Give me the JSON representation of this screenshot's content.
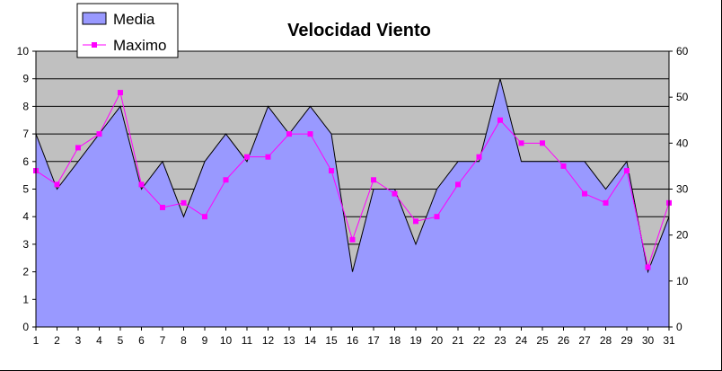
{
  "chart_data": {
    "type": "area",
    "title": "Velocidad Viento",
    "x": [
      1,
      2,
      3,
      4,
      5,
      6,
      7,
      8,
      9,
      10,
      11,
      12,
      13,
      14,
      15,
      16,
      17,
      18,
      19,
      20,
      21,
      22,
      23,
      24,
      25,
      26,
      27,
      28,
      29,
      30,
      31
    ],
    "x_tick_labels": [
      "1",
      "2",
      "3",
      "4",
      "5",
      "6",
      "7",
      "8",
      "9",
      "10",
      "11",
      "12",
      "13",
      "14",
      "15",
      "16",
      "17",
      "18",
      "19",
      "20",
      "21",
      "22",
      "23",
      "24",
      "25",
      "26",
      "27",
      "28",
      "29",
      "30",
      "31"
    ],
    "series": [
      {
        "name": "Media",
        "type": "area",
        "axis": "left",
        "color": "#9999ff",
        "values": [
          7,
          5,
          6,
          7,
          8,
          5,
          6,
          4,
          6,
          7,
          6,
          8,
          7,
          8,
          7,
          2,
          5,
          5,
          3,
          5,
          6,
          6,
          9,
          6,
          6,
          6,
          6,
          5,
          6,
          2,
          4
        ]
      },
      {
        "name": "Maximo",
        "type": "line",
        "axis": "right",
        "color": "#ff00ff",
        "values": [
          34,
          31,
          39,
          42,
          51,
          31,
          26,
          27,
          24,
          32,
          37,
          37,
          42,
          42,
          34,
          19,
          32,
          29,
          23,
          24,
          31,
          37,
          45,
          40,
          40,
          35,
          29,
          27,
          34,
          13,
          27
        ]
      }
    ],
    "left_axis": {
      "ylim": [
        0,
        10
      ],
      "ticks": [
        0,
        1,
        2,
        3,
        4,
        5,
        6,
        7,
        8,
        9,
        10
      ],
      "tick_labels": [
        "0",
        "1",
        "2",
        "3",
        "4",
        "5",
        "6",
        "7",
        "8",
        "9",
        "10"
      ]
    },
    "right_axis": {
      "ylim": [
        0,
        60
      ],
      "ticks": [
        0,
        10,
        20,
        30,
        40,
        50,
        60
      ],
      "tick_labels": [
        "0",
        "10",
        "20",
        "30",
        "40",
        "50",
        "60"
      ]
    },
    "grid": true,
    "plot_background": "#c0c0c0",
    "legend": {
      "position": "top-left",
      "entries": [
        "Media",
        "Maximo"
      ]
    }
  }
}
